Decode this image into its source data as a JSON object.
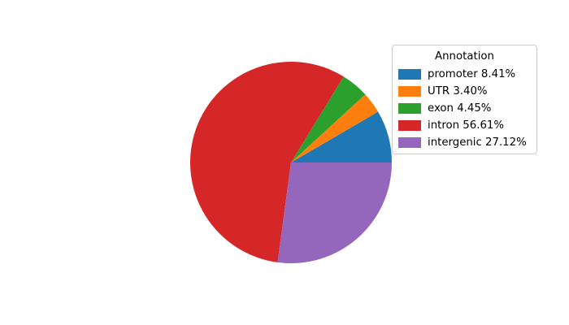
{
  "chart_data": {
    "type": "pie",
    "legend": {
      "title": "Annotation",
      "position": "upper right"
    },
    "start_angle": 0,
    "direction": "counterclockwise",
    "background_color": "#ffffff",
    "slices": [
      {
        "label": "promoter",
        "value": 8.41,
        "color": "#1f77b4",
        "legend_label": "promoter 8.41%"
      },
      {
        "label": "UTR",
        "value": 3.4,
        "color": "#ff7f0e",
        "legend_label": "UTR 3.40%"
      },
      {
        "label": "exon",
        "value": 4.45,
        "color": "#2ca02c",
        "legend_label": "exon 4.45%"
      },
      {
        "label": "intron",
        "value": 56.61,
        "color": "#d62728",
        "legend_label": "intron 56.61%"
      },
      {
        "label": "intergenic",
        "value": 27.12,
        "color": "#9467bd",
        "legend_label": "intergenic 27.12%"
      }
    ]
  }
}
